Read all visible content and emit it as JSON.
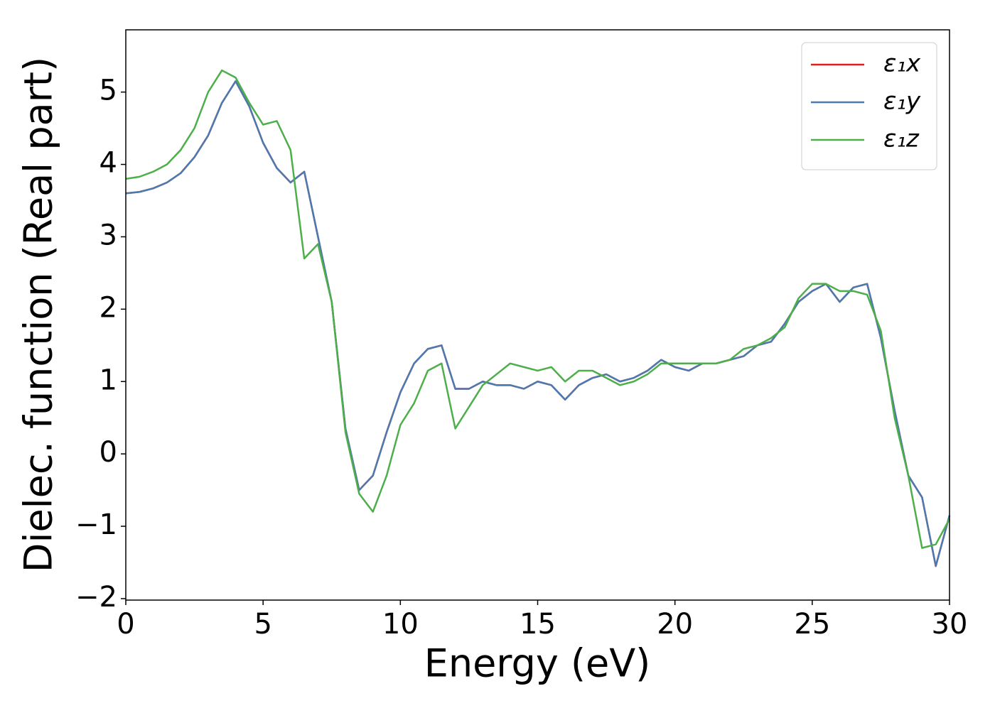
{
  "chart_data": {
    "type": "line",
    "x_label": "Energy (eV)",
    "y_label": "Dielec. function (Real part)",
    "x": [
      0,
      0.5,
      1,
      1.5,
      2,
      2.5,
      3,
      3.5,
      4,
      4.5,
      5,
      5.5,
      6,
      6.5,
      7,
      7.5,
      8,
      8.5,
      9,
      9.5,
      10,
      10.5,
      11,
      11.5,
      12,
      12.5,
      13,
      13.5,
      14,
      14.5,
      15,
      15.5,
      16,
      16.5,
      17,
      17.5,
      18,
      18.5,
      19,
      19.5,
      20,
      20.5,
      21,
      21.5,
      22,
      22.5,
      23,
      23.5,
      24,
      24.5,
      25,
      25.5,
      26,
      26.5,
      27,
      27.5,
      28,
      28.5,
      29,
      29.5,
      30
    ],
    "series": [
      {
        "name": "ε₁x",
        "color": "#e41a1c",
        "values": [
          3.6,
          3.62,
          3.67,
          3.75,
          3.88,
          4.1,
          4.4,
          4.85,
          5.15,
          4.8,
          4.3,
          3.95,
          3.75,
          3.9,
          3.0,
          2.1,
          0.35,
          -0.5,
          -0.3,
          0.3,
          0.85,
          1.25,
          1.45,
          1.5,
          0.9,
          0.9,
          1.0,
          0.95,
          0.95,
          0.9,
          1.0,
          0.95,
          0.75,
          0.95,
          1.05,
          1.1,
          1.0,
          1.05,
          1.15,
          1.3,
          1.2,
          1.15,
          1.25,
          1.25,
          1.3,
          1.35,
          1.5,
          1.55,
          1.8,
          2.1,
          2.25,
          2.35,
          2.1,
          2.3,
          2.35,
          1.6,
          0.6,
          -0.3,
          -0.6,
          -1.55,
          -0.85
        ]
      },
      {
        "name": "ε₁y",
        "color": "#4a7ab0",
        "values": [
          3.6,
          3.62,
          3.67,
          3.75,
          3.88,
          4.1,
          4.4,
          4.85,
          5.15,
          4.8,
          4.3,
          3.95,
          3.75,
          3.9,
          3.0,
          2.1,
          0.35,
          -0.5,
          -0.3,
          0.3,
          0.85,
          1.25,
          1.45,
          1.5,
          0.9,
          0.9,
          1.0,
          0.95,
          0.95,
          0.9,
          1.0,
          0.95,
          0.75,
          0.95,
          1.05,
          1.1,
          1.0,
          1.05,
          1.15,
          1.3,
          1.2,
          1.15,
          1.25,
          1.25,
          1.3,
          1.35,
          1.5,
          1.55,
          1.8,
          2.1,
          2.25,
          2.35,
          2.1,
          2.3,
          2.35,
          1.6,
          0.6,
          -0.3,
          -0.6,
          -1.55,
          -0.85
        ]
      },
      {
        "name": "ε₁z",
        "color": "#4daf4a",
        "values": [
          3.8,
          3.83,
          3.9,
          4.0,
          4.2,
          4.5,
          5.0,
          5.3,
          5.2,
          4.85,
          4.55,
          4.6,
          4.2,
          2.7,
          2.9,
          2.1,
          0.3,
          -0.55,
          -0.8,
          -0.3,
          0.4,
          0.7,
          1.15,
          1.25,
          0.35,
          0.65,
          0.95,
          1.1,
          1.25,
          1.2,
          1.15,
          1.2,
          1.0,
          1.15,
          1.15,
          1.05,
          0.95,
          1.0,
          1.1,
          1.25,
          1.25,
          1.25,
          1.25,
          1.25,
          1.3,
          1.45,
          1.5,
          1.6,
          1.75,
          2.15,
          2.35,
          2.35,
          2.25,
          2.25,
          2.2,
          1.7,
          0.5,
          -0.3,
          -1.3,
          -1.25,
          -0.9
        ]
      }
    ],
    "xlim": [
      0,
      30
    ],
    "xticks": [
      0,
      5,
      10,
      15,
      20,
      25,
      30
    ],
    "ylim": [
      -2.02,
      5.86
    ],
    "yticks": [
      {
        "value": -2,
        "label": "−2"
      },
      {
        "value": -1,
        "label": "−1"
      },
      0,
      1,
      2,
      3,
      4,
      5
    ],
    "grid": false,
    "legend": "upper right"
  }
}
